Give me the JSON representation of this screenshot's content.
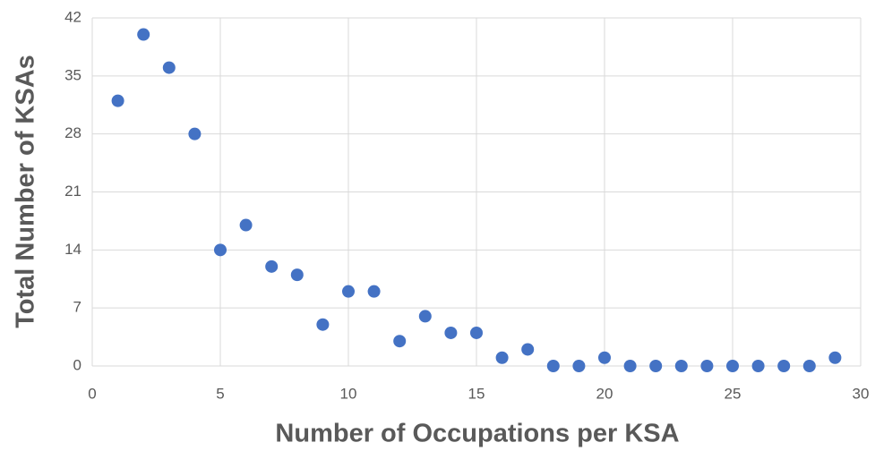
{
  "chart_data": {
    "type": "scatter",
    "x_label": "Number of Occupations per KSA",
    "y_label": "Total Number of KSAs",
    "x": [
      1,
      2,
      3,
      4,
      5,
      6,
      7,
      8,
      9,
      10,
      11,
      12,
      13,
      14,
      15,
      16,
      17,
      18,
      19,
      20,
      21,
      22,
      23,
      24,
      25,
      26,
      27,
      28,
      29
    ],
    "series": [
      {
        "name": "KSAs",
        "color": "#4472c4",
        "values": [
          32,
          40,
          36,
          28,
          14,
          17,
          12,
          11,
          5,
          9,
          9,
          3,
          6,
          4,
          4,
          1,
          2,
          0,
          0,
          1,
          0,
          0,
          0,
          0,
          0,
          0,
          0,
          0,
          1
        ]
      }
    ],
    "xlim": [
      0,
      30
    ],
    "xticks": [
      0,
      5,
      10,
      15,
      20,
      25,
      30
    ],
    "ylim": [
      0,
      42
    ],
    "yticks": [
      0,
      7,
      14,
      21,
      28,
      35,
      42
    ],
    "grid": true
  }
}
